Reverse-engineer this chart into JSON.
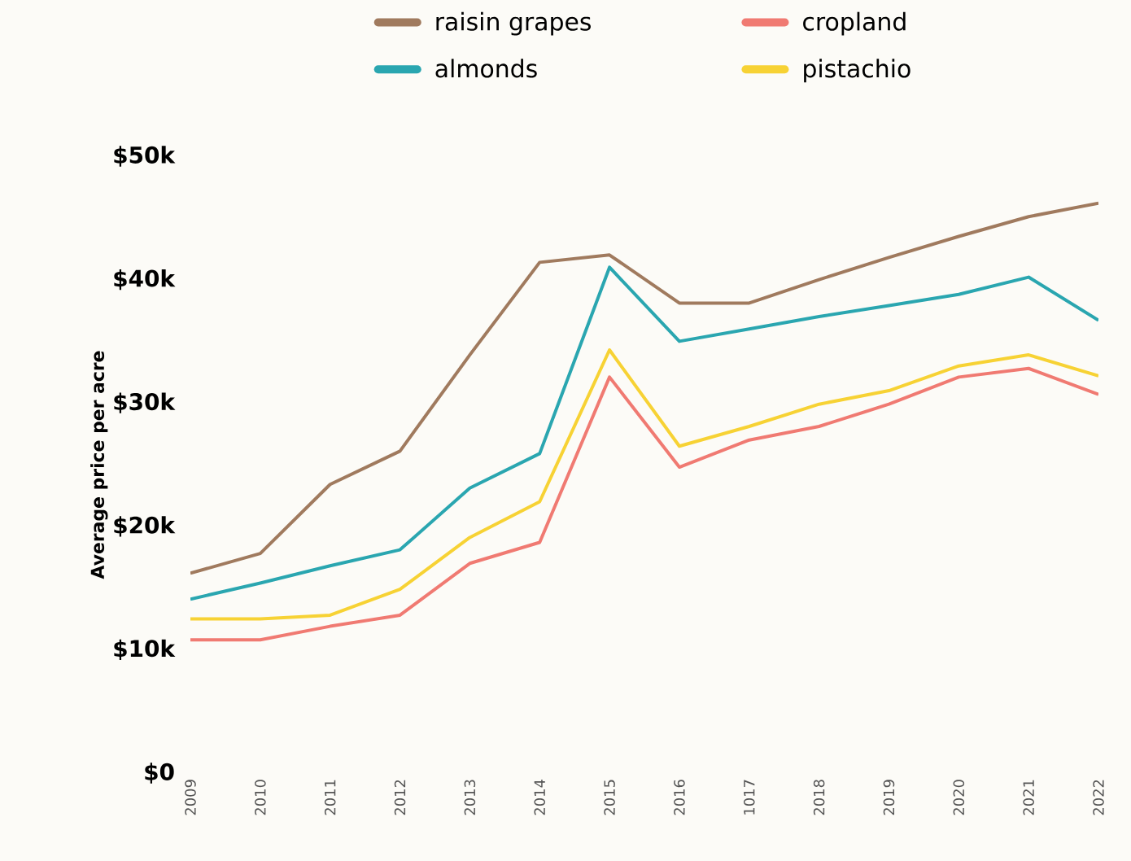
{
  "chart_data": {
    "type": "line",
    "ylabel": "Average price per acre",
    "categories": [
      "2009",
      "2010",
      "2011",
      "2012",
      "2013",
      "2014",
      "2015",
      "2016",
      "1017",
      "2018",
      "2019",
      "2020",
      "2021",
      "2022"
    ],
    "series": [
      {
        "name": "raisin grapes",
        "color": "#a07a5e",
        "values": [
          16.2,
          17.8,
          23.4,
          26.1,
          33.9,
          41.4,
          42.0,
          38.1,
          38.1,
          40.0,
          41.8,
          43.5,
          45.1,
          46.2
        ]
      },
      {
        "name": "cropland",
        "color": "#f07a72",
        "values": [
          10.8,
          10.8,
          11.9,
          12.8,
          17.0,
          18.7,
          32.1,
          24.8,
          27.0,
          28.1,
          29.9,
          32.1,
          32.8,
          30.7
        ]
      },
      {
        "name": "almonds",
        "color": "#2aa6b0",
        "values": [
          14.1,
          15.4,
          16.8,
          18.1,
          23.1,
          25.9,
          41.0,
          35.0,
          36.0,
          37.0,
          37.9,
          38.8,
          40.2,
          36.7
        ]
      },
      {
        "name": "pistachio",
        "color": "#f7d234",
        "values": [
          12.5,
          12.5,
          12.8,
          14.9,
          19.1,
          22.0,
          34.3,
          26.5,
          28.1,
          29.9,
          31.0,
          33.0,
          33.9,
          32.2
        ]
      }
    ],
    "ylim": [
      0,
      50
    ],
    "yticks": [
      {
        "value": 0,
        "label": "$0"
      },
      {
        "value": 10,
        "label": "$10k"
      },
      {
        "value": 20,
        "label": "$20k"
      },
      {
        "value": 30,
        "label": "$30k"
      },
      {
        "value": 40,
        "label": "$40k"
      },
      {
        "value": 50,
        "label": "$50k"
      }
    ],
    "legend": "top",
    "grid": false,
    "marker": "none",
    "line_style": "solid"
  }
}
